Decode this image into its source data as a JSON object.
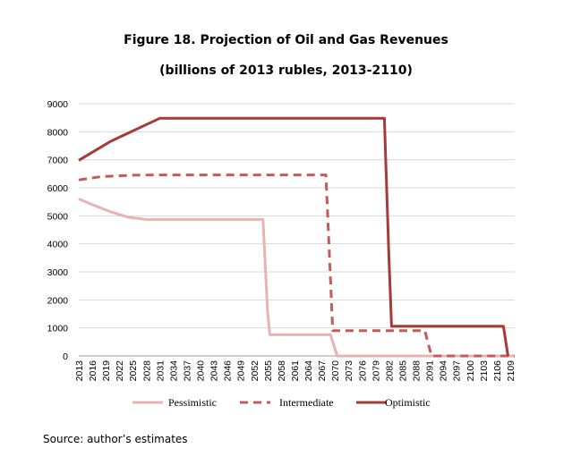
{
  "chart_data": {
    "type": "line",
    "title": "Figure 18. Projection of Oil and Gas Revenues",
    "subtitle": "(billions of 2013 rubles, 2013-2110)",
    "xlabel": "",
    "ylabel": "",
    "ylim": [
      0,
      9000
    ],
    "yticks": [
      0,
      1000,
      2000,
      3000,
      4000,
      5000,
      6000,
      7000,
      8000,
      9000
    ],
    "x_start": 2013,
    "x_end": 2110,
    "xticks": [
      2013,
      2016,
      2019,
      2022,
      2025,
      2028,
      2031,
      2034,
      2037,
      2040,
      2043,
      2046,
      2049,
      2052,
      2055,
      2058,
      2061,
      2064,
      2067,
      2070,
      2073,
      2076,
      2079,
      2082,
      2085,
      2088,
      2091,
      2094,
      2097,
      2100,
      2103,
      2106,
      2109
    ],
    "grid": "horizontal",
    "legend_position": "bottom",
    "series": [
      {
        "name": "Pessimistic",
        "color": "#e7b3b3",
        "dash": "solid",
        "points": [
          [
            2013,
            5600
          ],
          [
            2016,
            5400
          ],
          [
            2020,
            5150
          ],
          [
            2024,
            4950
          ],
          [
            2028,
            4870
          ],
          [
            2031,
            4870
          ],
          [
            2040,
            4870
          ],
          [
            2050,
            4870
          ],
          [
            2054,
            4870
          ],
          [
            2055,
            1600
          ],
          [
            2055.5,
            760
          ],
          [
            2060,
            760
          ],
          [
            2069,
            760
          ],
          [
            2070.5,
            0
          ],
          [
            2080,
            0
          ],
          [
            2090,
            0
          ],
          [
            2100,
            0
          ],
          [
            2110,
            0
          ]
        ]
      },
      {
        "name": "Intermediate",
        "color": "#c55a5a",
        "dash": "dashed",
        "points": [
          [
            2013,
            6280
          ],
          [
            2018,
            6400
          ],
          [
            2025,
            6450
          ],
          [
            2030,
            6460
          ],
          [
            2040,
            6460
          ],
          [
            2050,
            6460
          ],
          [
            2060,
            6460
          ],
          [
            2068,
            6460
          ],
          [
            2069.5,
            900
          ],
          [
            2075,
            900
          ],
          [
            2085,
            900
          ],
          [
            2090,
            900
          ],
          [
            2091.5,
            0
          ],
          [
            2100,
            0
          ],
          [
            2110,
            0
          ]
        ]
      },
      {
        "name": "Optimistic",
        "color": "#a53a3a",
        "dash": "solid",
        "points": [
          [
            2013,
            6980
          ],
          [
            2020,
            7650
          ],
          [
            2031,
            8480
          ],
          [
            2040,
            8480
          ],
          [
            2050,
            8480
          ],
          [
            2060,
            8480
          ],
          [
            2070,
            8480
          ],
          [
            2080,
            8480
          ],
          [
            2081,
            8480
          ],
          [
            2082,
            3600
          ],
          [
            2082.6,
            1060
          ],
          [
            2090,
            1060
          ],
          [
            2100,
            1060
          ],
          [
            2107.5,
            1060
          ],
          [
            2108.5,
            0
          ]
        ]
      }
    ]
  },
  "source": "Source: author’s estimates"
}
